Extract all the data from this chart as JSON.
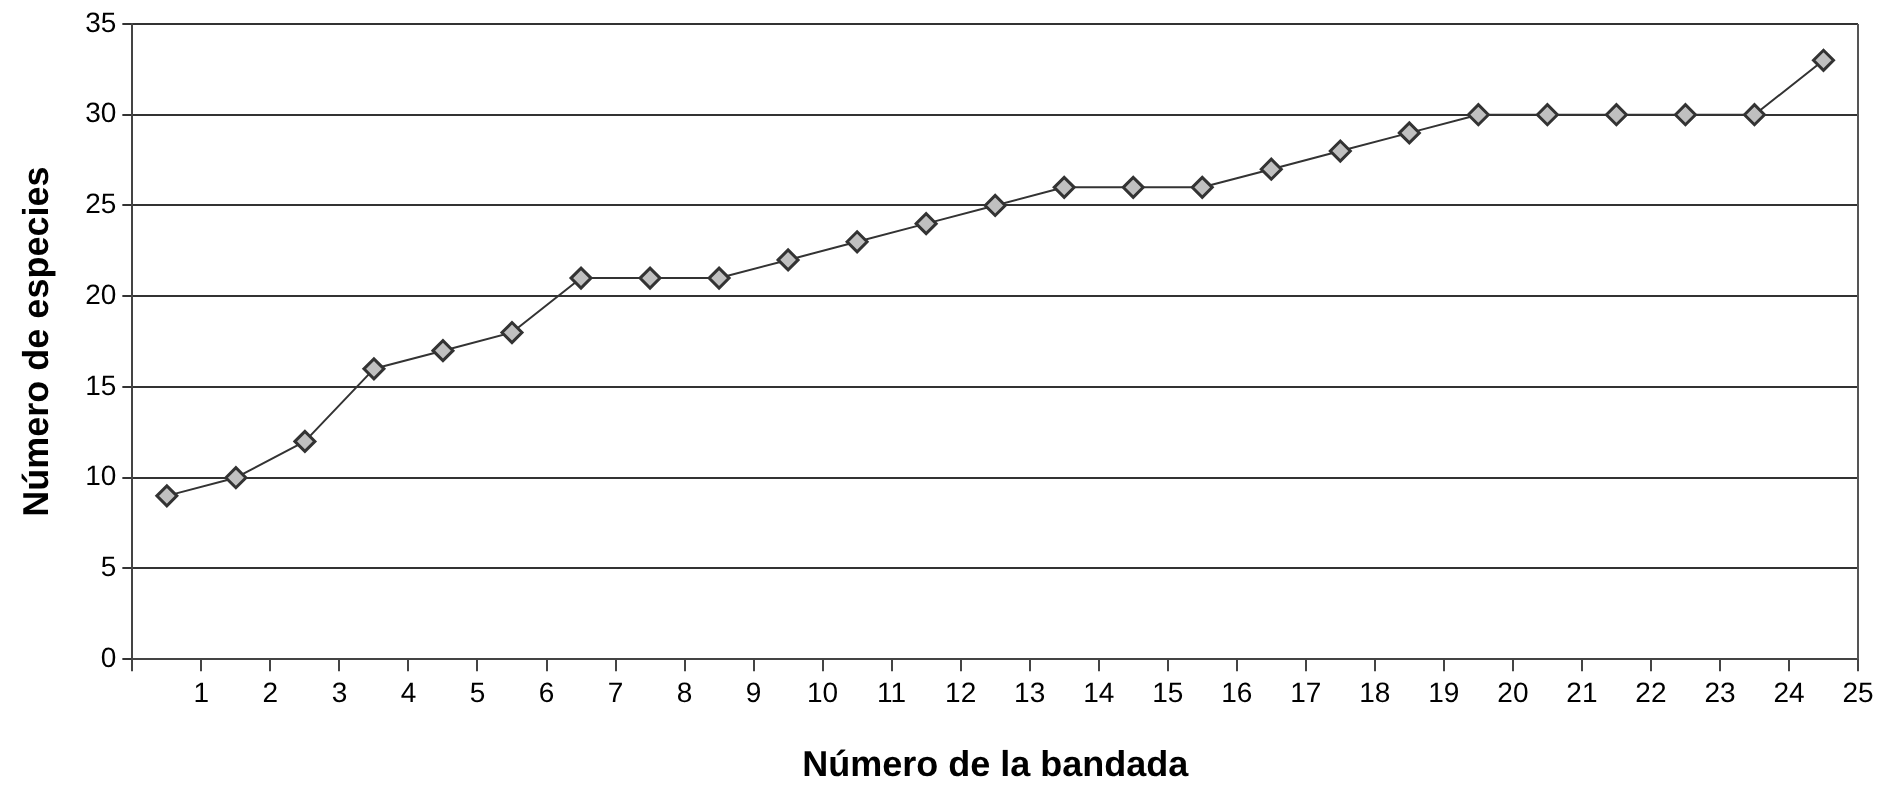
{
  "chart_data": {
    "type": "line",
    "xlabel": "Número de la bandada",
    "ylabel": "Número de especies",
    "x": [
      0.5,
      1.5,
      2.5,
      3.5,
      4.5,
      5.5,
      6.5,
      7.5,
      8.5,
      9.5,
      10.5,
      11.5,
      12.5,
      13.5,
      14.5,
      15.5,
      16.5,
      17.5,
      18.5,
      19.5,
      20.5,
      21.5,
      22.5,
      23.5,
      24.5
    ],
    "series": [
      {
        "color": "#333333",
        "values": [
          9,
          10,
          12,
          16,
          17,
          18,
          21,
          21,
          21,
          22,
          23,
          24,
          25,
          26,
          26,
          26,
          27,
          28,
          29,
          30,
          30,
          30,
          30,
          30,
          33
        ]
      }
    ],
    "xlim": [
      0,
      25
    ],
    "xticks": [
      {
        "value": 0,
        "label": null
      },
      1,
      2,
      3,
      4,
      5,
      6,
      7,
      8,
      9,
      10,
      11,
      12,
      13,
      14,
      15,
      16,
      17,
      18,
      19,
      20,
      21,
      22,
      23,
      24,
      25
    ],
    "ylim": [
      0,
      35
    ],
    "yticks": [
      0,
      5,
      10,
      15,
      20,
      25,
      30,
      35
    ],
    "grid": "y",
    "legend": false,
    "marker": "diamond",
    "line_style": "solid"
  }
}
